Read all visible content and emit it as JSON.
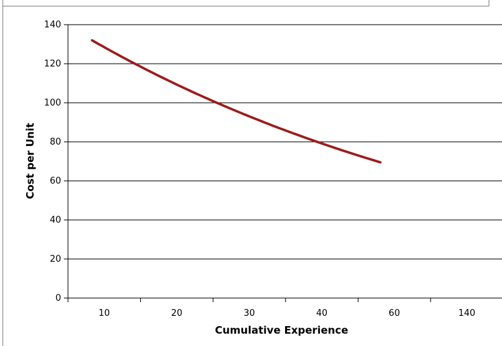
{
  "chart_data": {
    "type": "line",
    "title": "",
    "xlabel": "Cumulative Experience",
    "ylabel": "Cost per Unit",
    "x_axis_scale": "log2",
    "x_tick_labels": [
      "10",
      "20",
      "30",
      "40",
      "60",
      "140"
    ],
    "ylim": [
      0,
      140
    ],
    "y_ticks": [
      0,
      20,
      40,
      60,
      80,
      100,
      120,
      140
    ],
    "grid": "horizontal",
    "legend": "none",
    "series_color": "#9b1c1c",
    "series": [
      {
        "x": [
          8.9,
          10,
          12,
          15,
          20,
          25,
          30,
          40,
          50,
          60,
          80,
          100,
          120,
          140
        ],
        "y": [
          132,
          123,
          115,
          107,
          100,
          95,
          91,
          80,
          77,
          75,
          72,
          71,
          70,
          69.5
        ]
      }
    ]
  }
}
